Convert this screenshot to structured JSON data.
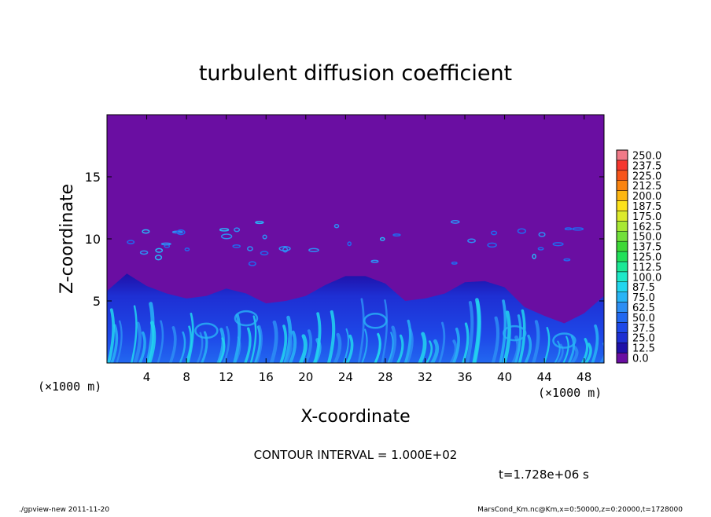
{
  "chart_data": {
    "type": "heatmap",
    "title": "turbulent diffusion coefficient",
    "xlabel": "X-coordinate",
    "ylabel": "Z-coordinate",
    "x_unit_label": "(×1000 m)",
    "x_unit_label_right": "(×1000 m)",
    "xlim": [
      0,
      50
    ],
    "ylim": [
      0,
      20
    ],
    "x_ticks": [
      4,
      8,
      12,
      16,
      20,
      24,
      28,
      32,
      36,
      40,
      44,
      48
    ],
    "y_ticks": [
      5,
      10,
      15
    ],
    "contour_interval_text": "CONTOUR INTERVAL = 1.000E+02",
    "time_text": "t=1.728e+06 s",
    "colorbar": {
      "levels": [
        0.0,
        12.5,
        25.0,
        37.5,
        50.0,
        62.5,
        75.0,
        87.5,
        100.0,
        112.5,
        125.0,
        137.5,
        150.0,
        162.5,
        175.0,
        187.5,
        200.0,
        212.5,
        225.0,
        237.5,
        250.0
      ],
      "labels": [
        "0.0",
        "12.5",
        "25.0",
        "37.5",
        "50.0",
        "62.5",
        "75.0",
        "87.5",
        "100.0",
        "112.5",
        "125.0",
        "137.5",
        "150.0",
        "162.5",
        "175.0",
        "187.5",
        "200.0",
        "212.5",
        "225.0",
        "237.5",
        "250.0"
      ],
      "colors": [
        "#6a0ea2",
        "#1f10a8",
        "#1e2fd3",
        "#1e48e8",
        "#2268f0",
        "#2d8ef4",
        "#28b4f6",
        "#22d6ee",
        "#1fe8c8",
        "#1ce896",
        "#22e05a",
        "#3ed837",
        "#72e03a",
        "#a8e834",
        "#dcea2c",
        "#fce21c",
        "#fcb612",
        "#fa8410",
        "#f7541a",
        "#f5362e",
        "#f07a88"
      ]
    },
    "background_value_color": "#6a0ea2",
    "boundary_profile": {
      "x": [
        0,
        2,
        4,
        6,
        8,
        10,
        12,
        14,
        16,
        18,
        20,
        22,
        24,
        26,
        28,
        30,
        32,
        34,
        36,
        38,
        40,
        42,
        44,
        46,
        48,
        50
      ],
      "z": [
        5.8,
        7.2,
        6.2,
        5.6,
        5.2,
        5.4,
        6.0,
        5.6,
        4.8,
        5.0,
        5.4,
        6.3,
        7.0,
        7.0,
        6.4,
        5.0,
        5.2,
        5.6,
        6.5,
        6.6,
        6.1,
        4.5,
        3.8,
        3.2,
        4.0,
        5.4
      ]
    }
  },
  "footer": {
    "left": "./gpview-new   2011-11-20",
    "right": "MarsCond_Km.nc@Km,x=0:50000,z=0:20000,t=1728000"
  }
}
